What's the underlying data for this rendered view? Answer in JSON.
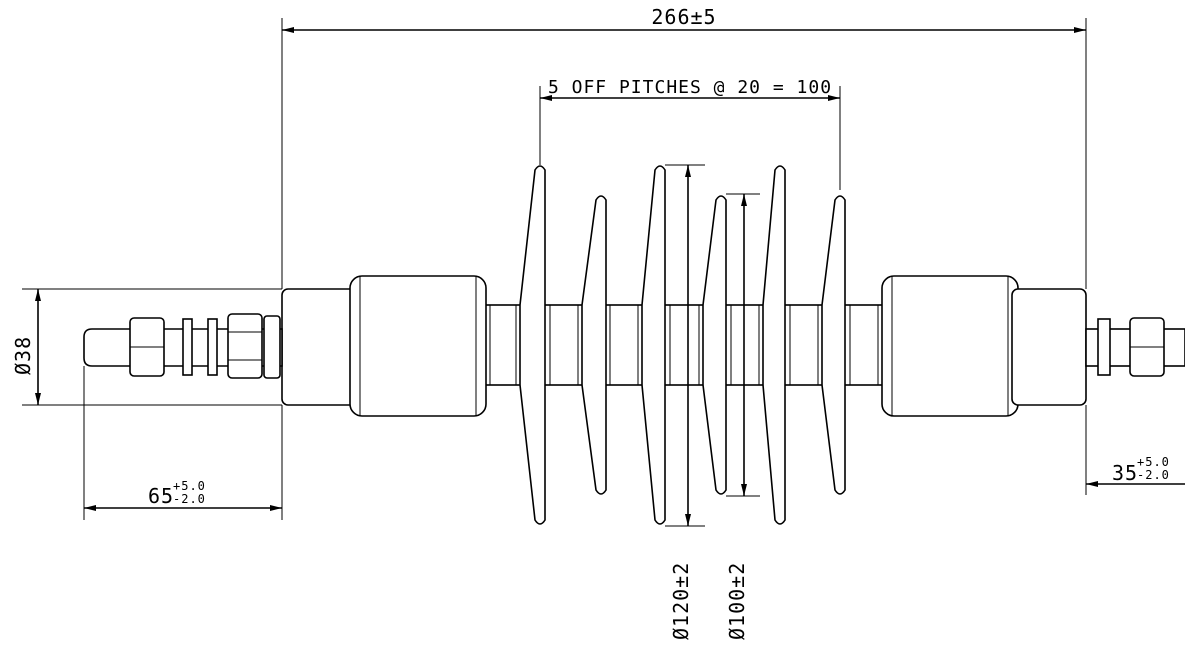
{
  "dimensions": {
    "overall_length": "266±5",
    "pitches": "5 OFF PITCHES @ 20 = 100",
    "shed_large_dia": "Ø120±2",
    "shed_small_dia": "Ø100±2",
    "shank_dia": "Ø38",
    "left_stud": {
      "main": "65",
      "upper": "+5.0",
      "lower": "-2.0"
    },
    "right_stud": {
      "main": "35",
      "upper": "+5.0",
      "lower": "-2.0"
    }
  }
}
